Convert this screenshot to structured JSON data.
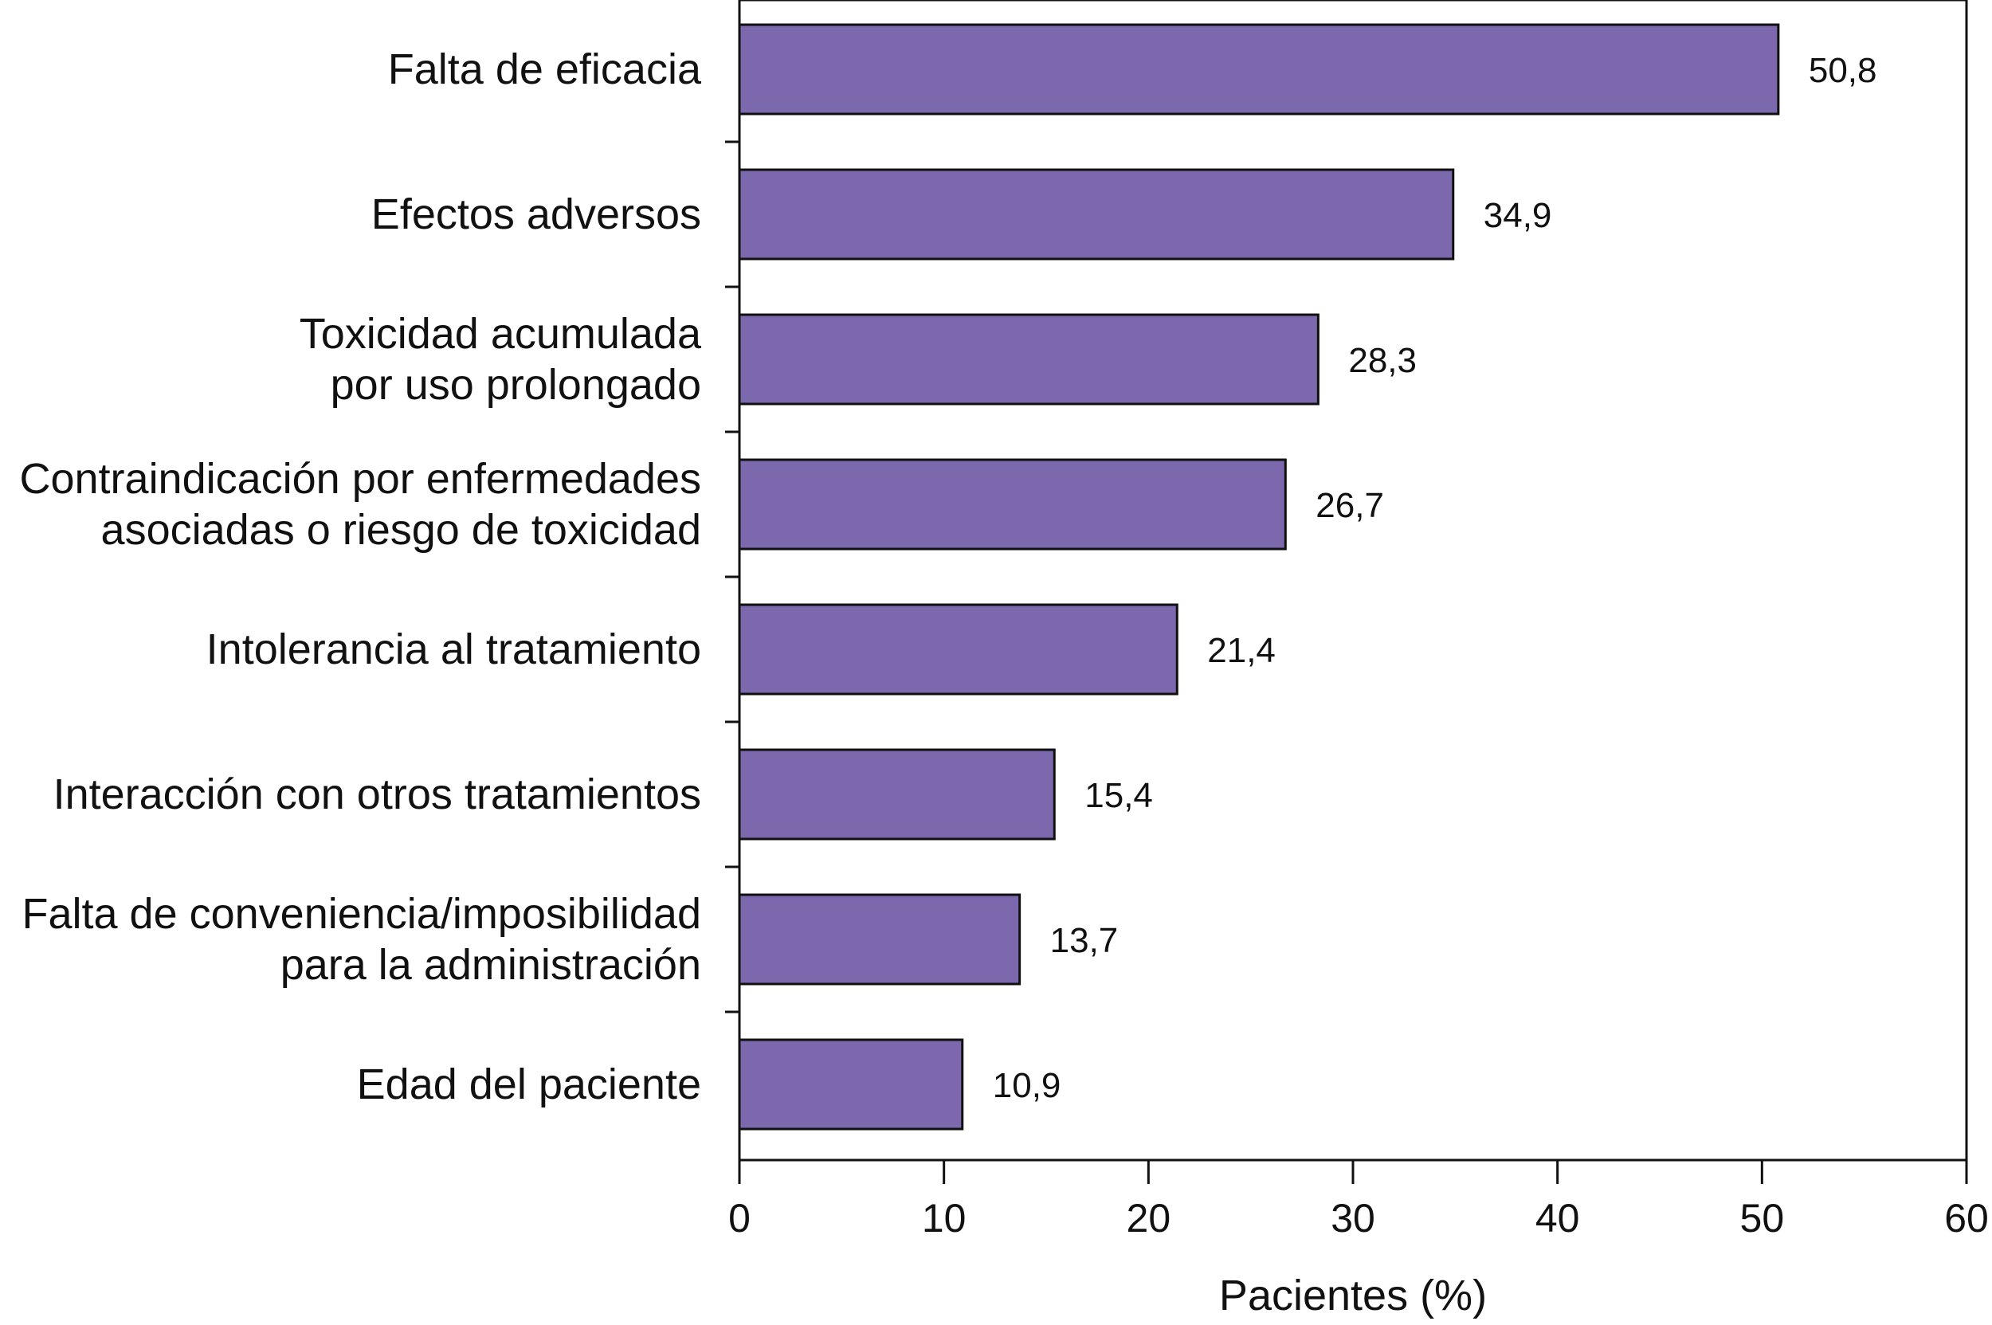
{
  "chart_data": {
    "type": "bar",
    "orientation": "horizontal",
    "categories": [
      [
        "Falta de eficacia"
      ],
      [
        "Efectos adversos"
      ],
      [
        "Toxicidad acumulada",
        "por uso prolongado"
      ],
      [
        "Contraindicación por enfermedades",
        "asociadas o riesgo de toxicidad"
      ],
      [
        "Intolerancia al tratamiento"
      ],
      [
        "Interacción con otros tratamientos"
      ],
      [
        "Falta de conveniencia/imposibilidad",
        "para la administración"
      ],
      [
        "Edad del paciente"
      ]
    ],
    "values": [
      50.8,
      34.9,
      28.3,
      26.7,
      21.4,
      15.4,
      13.7,
      10.9
    ],
    "value_labels": [
      "50,8",
      "34,9",
      "28,3",
      "26,7",
      "21,4",
      "15,4",
      "13,7",
      "10,9"
    ],
    "xlabel": "Pacientes (%)",
    "xlim": [
      0,
      60
    ],
    "xticks": [
      0,
      10,
      20,
      30,
      40,
      50,
      60
    ],
    "bar_color": "#7b68ad",
    "grid": false,
    "legend": "none"
  }
}
